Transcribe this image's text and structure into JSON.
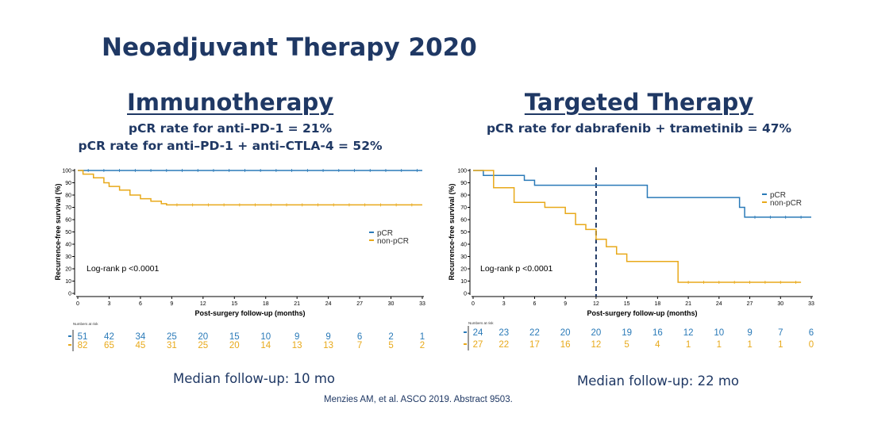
{
  "slide": {
    "title": "Neoadjuvant Therapy 2020",
    "citation": "Menzies AM, et al. ASCO 2019. Abstract 9503."
  },
  "panels": [
    {
      "heading": "Immunotherapy",
      "rate_lines": [
        "pCR rate for anti–PD-1 = 21%",
        "pCR rate for anti–PD-1 + anti–CTLA-4 = 52%"
      ],
      "median_followup": "Median follow-up: 10 mo",
      "logrank": "Log-rank p <0.0001",
      "risk_title": "Numbers at risk"
    },
    {
      "heading": "Targeted Therapy",
      "rate_lines": [
        "pCR rate for dabrafenib + trametinib = 47%"
      ],
      "median_followup": "Median follow-up: 22 mo",
      "logrank": "Log-rank p <0.0001",
      "risk_title": "Numbers at risk"
    }
  ],
  "colors": {
    "pcr": "#2a7ab8",
    "non_pcr": "#e8a91a",
    "title": "#1f3864",
    "dashed_line": "#1f3864"
  },
  "chart_data": [
    {
      "type": "line",
      "chart_style": "kaplan-meier step",
      "xlabel": "Post-surgery follow-up (months)",
      "ylabel": "Recurrence-free survival (%)",
      "xlim": [
        0,
        33
      ],
      "ylim": [
        0,
        100
      ],
      "xticks": [
        0,
        3,
        6,
        9,
        12,
        15,
        18,
        21,
        24,
        27,
        30,
        33
      ],
      "yticks": [
        0,
        10,
        20,
        30,
        40,
        50,
        60,
        70,
        80,
        90,
        100
      ],
      "legend_position": "right",
      "series": [
        {
          "name": "pCR",
          "color": "#2a7ab8",
          "steps": [
            [
              0,
              100
            ],
            [
              33,
              100
            ]
          ],
          "at_risk": [
            51,
            42,
            34,
            25,
            20,
            15,
            10,
            9,
            9,
            6,
            2,
            1
          ]
        },
        {
          "name": "non-pCR",
          "color": "#e8a91a",
          "steps": [
            [
              0,
              100
            ],
            [
              0.5,
              97
            ],
            [
              1.5,
              94
            ],
            [
              2.5,
              90
            ],
            [
              3,
              87
            ],
            [
              4,
              84
            ],
            [
              5,
              80
            ],
            [
              6,
              77
            ],
            [
              7,
              75
            ],
            [
              8,
              73
            ],
            [
              8.5,
              72
            ],
            [
              33,
              72
            ]
          ],
          "at_risk": [
            82,
            65,
            45,
            31,
            25,
            20,
            14,
            13,
            13,
            7,
            5,
            2
          ]
        }
      ],
      "annotations": [
        "Log-rank p <0.0001"
      ]
    },
    {
      "type": "line",
      "chart_style": "kaplan-meier step",
      "xlabel": "Post-surgery follow-up (months)",
      "ylabel": "Recurrence-free survival (%)",
      "xlim": [
        0,
        33
      ],
      "ylim": [
        0,
        100
      ],
      "xticks": [
        0,
        3,
        6,
        9,
        12,
        15,
        18,
        21,
        24,
        27,
        30,
        33
      ],
      "yticks": [
        0,
        10,
        20,
        30,
        40,
        50,
        60,
        70,
        80,
        90,
        100
      ],
      "legend_position": "top-right",
      "reference_line_x": 12,
      "series": [
        {
          "name": "pCR",
          "color": "#2a7ab8",
          "steps": [
            [
              0,
              100
            ],
            [
              1,
              96
            ],
            [
              5,
              92
            ],
            [
              6,
              88
            ],
            [
              17,
              78
            ],
            [
              26,
              70
            ],
            [
              26.5,
              62
            ],
            [
              33,
              62
            ]
          ],
          "at_risk": [
            24,
            23,
            22,
            20,
            20,
            19,
            16,
            12,
            10,
            9,
            7,
            6
          ]
        },
        {
          "name": "non-pCR",
          "color": "#e8a91a",
          "steps": [
            [
              0,
              100
            ],
            [
              2,
              86
            ],
            [
              4,
              74
            ],
            [
              7,
              70
            ],
            [
              9,
              65
            ],
            [
              10,
              56
            ],
            [
              11,
              52
            ],
            [
              12,
              44
            ],
            [
              13,
              38
            ],
            [
              14,
              32
            ],
            [
              15,
              26
            ],
            [
              20,
              9
            ],
            [
              32,
              9
            ]
          ],
          "at_risk": [
            27,
            22,
            17,
            16,
            12,
            5,
            4,
            1,
            1,
            1,
            1,
            0
          ]
        }
      ],
      "annotations": [
        "Log-rank p <0.0001"
      ]
    }
  ]
}
